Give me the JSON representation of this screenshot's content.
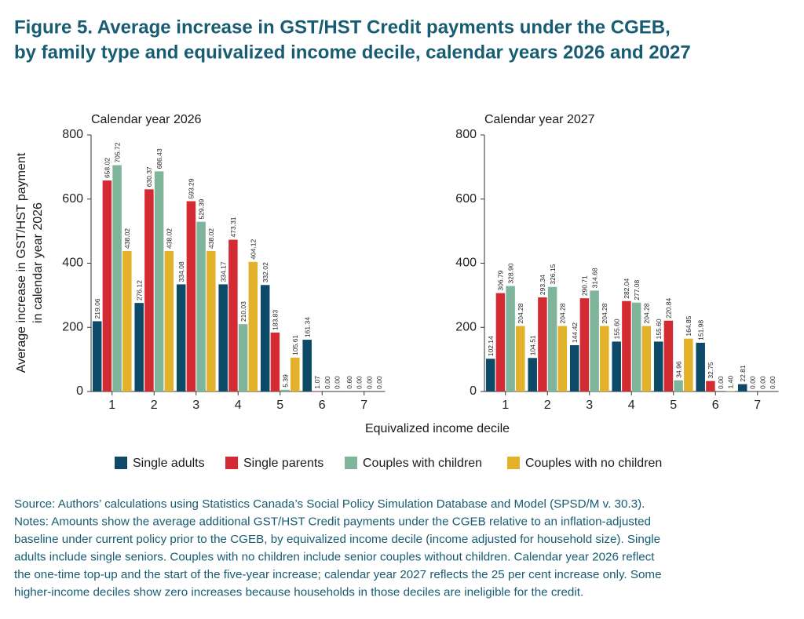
{
  "title": [
    "Figure 5. Average increase in GST/HST Credit payments under the CGEB,",
    "by family type and equivalized income decile, calendar years 2026 and 2027"
  ],
  "xlabel": "Equivalized income decile",
  "notes": [
    "Source: Authors’ calculations using Statistics Canada’s Social Policy Simulation Database and Model (SPSD/M v. 30.3).",
    "Notes: Amounts show the average additional GST/HST Credit payments under the CGEB relative to an inflation-adjusted",
    "baseline under current policy prior to the CGEB, by equivalized income decile (income adjusted for household size). Single",
    "adults include single seniors. Couples with no children include senior couples without children. Calendar year 2026 reflect",
    "the one-time top-up and the start of the five-year increase; calendar year 2027 reflects the 25 per cent increase only. Some",
    "higher-income deciles show zero increases because households in those deciles are ineligible for the credit."
  ],
  "chart_data": [
    {
      "type": "bar",
      "subtitle": "Calendar year 2026",
      "ylabel": [
        "Average increase in GST/HST payment",
        "in calendar year 2026"
      ],
      "categories": [
        "1",
        "2",
        "3",
        "4",
        "5",
        "6",
        "7"
      ],
      "ylim": [
        0,
        800
      ],
      "yticks": [
        0,
        200,
        400,
        600,
        800
      ],
      "series": [
        {
          "name": "Single adults",
          "color": "#0d4a68",
          "values": [
            219.06,
            276.12,
            334.08,
            334.17,
            332.02,
            161.34,
            0.6
          ],
          "value_labels": [
            "219.06",
            "276.12",
            "334.08",
            "334.17",
            "332.02",
            "161.34",
            "0.60"
          ]
        },
        {
          "name": "Single parents",
          "color": "#d42a33",
          "values": [
            658.02,
            630.37,
            593.29,
            473.31,
            183.83,
            1.07,
            0
          ],
          "value_labels": [
            "658.02",
            "630.37",
            "593.29",
            "473.31",
            "183.83",
            "1.07",
            "0.00"
          ]
        },
        {
          "name": "Couples with children",
          "color": "#7fb59a",
          "values": [
            705.72,
            686.43,
            529.39,
            210.03,
            5.39,
            0,
            0
          ],
          "value_labels": [
            "705.72",
            "686.43",
            "529.39",
            "210.03",
            "5.39",
            "0.00",
            "0.00"
          ]
        },
        {
          "name": "Couples with no children",
          "color": "#e3b12a",
          "values": [
            438.02,
            438.02,
            438.02,
            404.12,
            105.61,
            0,
            0
          ],
          "value_labels": [
            "438.02",
            "438.02",
            "438.02",
            "404.12",
            "105.61",
            "0.00",
            "0.00"
          ]
        }
      ]
    },
    {
      "type": "bar",
      "subtitle": "Calendar year 2027",
      "categories": [
        "1",
        "2",
        "3",
        "4",
        "5",
        "6",
        "7"
      ],
      "ylim": [
        0,
        800
      ],
      "yticks": [
        0,
        200,
        400,
        600,
        800
      ],
      "series": [
        {
          "color": "#0d4a68",
          "values": [
            102.14,
            104.51,
            144.42,
            155.6,
            155.6,
            151.98,
            22.81
          ],
          "value_labels": [
            "102.14",
            "104.51",
            "144.42",
            "155.60",
            "155.60",
            "151.98",
            "22.81"
          ]
        },
        {
          "color": "#d42a33",
          "values": [
            306.79,
            293.34,
            290.71,
            282.04,
            220.84,
            32.75,
            0
          ],
          "value_labels": [
            "306.79",
            "293.34",
            "290.71",
            "282.04",
            "220.84",
            "32.75",
            "0.00"
          ]
        },
        {
          "color": "#7fb59a",
          "values": [
            328.9,
            326.15,
            314.68,
            277.08,
            34.96,
            0,
            0
          ],
          "value_labels": [
            "328.90",
            "326.15",
            "314.68",
            "277.08",
            "34.96",
            "0.00",
            "0.00"
          ]
        },
        {
          "color": "#e3b12a",
          "values": [
            204.28,
            204.28,
            204.28,
            204.28,
            164.85,
            1.4,
            0
          ],
          "value_labels": [
            "204.28",
            "204.28",
            "204.28",
            "204.28",
            "164.85",
            "1.40",
            "0.00"
          ]
        }
      ]
    }
  ]
}
